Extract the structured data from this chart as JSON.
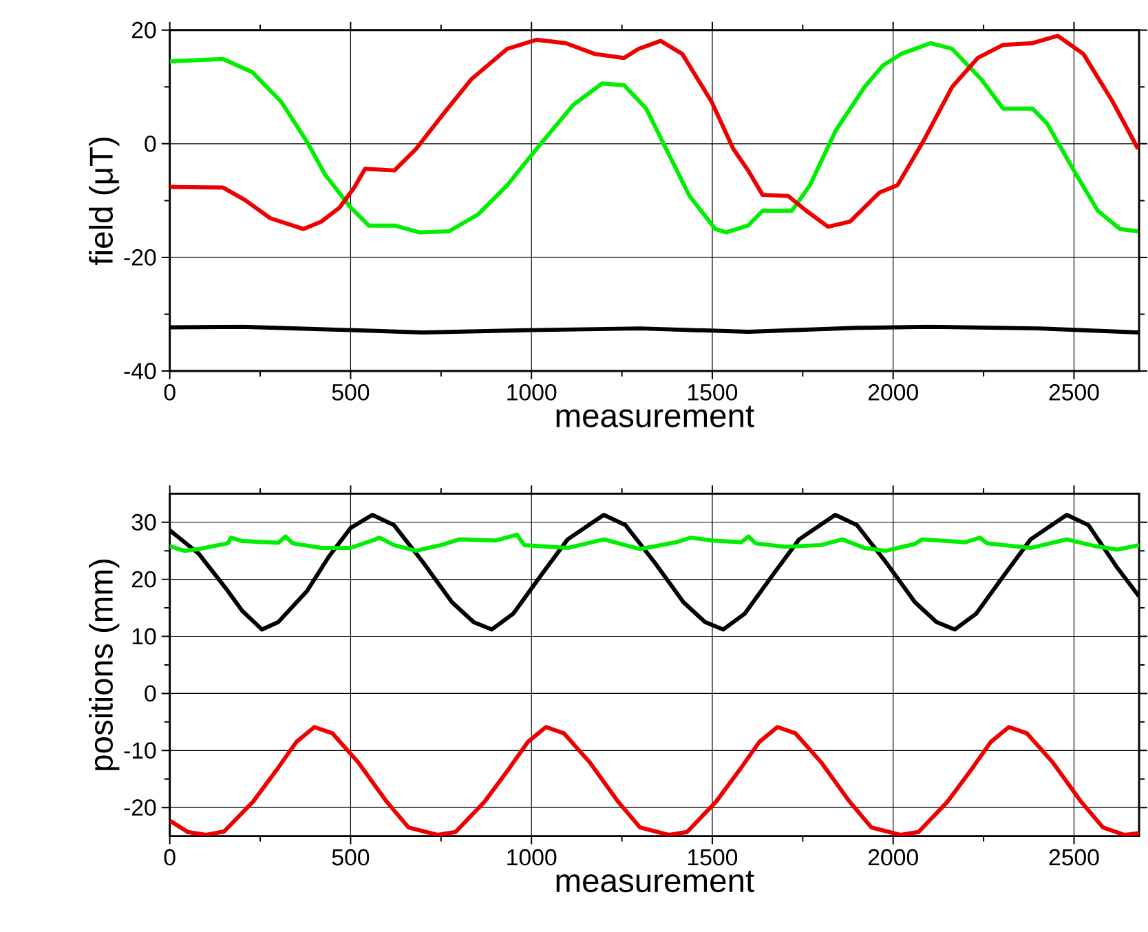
{
  "chart_data": [
    {
      "type": "line",
      "xlabel": "measurement",
      "ylabel": "field (μT)",
      "xlim": [
        0,
        2680
      ],
      "ylim": [
        -40,
        20
      ],
      "xticks": [
        0,
        500,
        1000,
        1500,
        2000,
        2500
      ],
      "yticks": [
        -40,
        -20,
        0,
        20
      ],
      "grid": true,
      "series": [
        {
          "color": "#00ee00",
          "x": [
            0,
            147,
            228,
            308,
            379,
            429,
            500,
            550,
            621,
            691,
            772,
            853,
            933,
            1014,
            1115,
            1195,
            1256,
            1317,
            1377,
            1437,
            1508,
            1538,
            1599,
            1639,
            1720,
            1770,
            1841,
            1921,
            1972,
            2022,
            2103,
            2163,
            2244,
            2304,
            2385,
            2425,
            2506,
            2566,
            2627,
            2677
          ],
          "values": [
            14.5,
            14.9,
            12.6,
            7.4,
            0.4,
            -5.4,
            -11.2,
            -14.4,
            -14.4,
            -15.6,
            -15.4,
            -12.4,
            -7.3,
            -0.9,
            6.8,
            10.6,
            10.3,
            6.2,
            -1.5,
            -9.2,
            -15,
            -15.6,
            -14.4,
            -11.8,
            -11.8,
            -7.3,
            2.3,
            10,
            13.8,
            15.8,
            17.7,
            16.7,
            11.3,
            6.2,
            6.2,
            3.6,
            -5.4,
            -11.8,
            -15,
            -15.4
          ]
        },
        {
          "color": "#ee0000",
          "x": [
            0,
            147,
            208,
            278,
            369,
            419,
            470,
            510,
            540,
            621,
            681,
            752,
            833,
            933,
            1014,
            1095,
            1175,
            1256,
            1296,
            1357,
            1417,
            1498,
            1558,
            1599,
            1639,
            1710,
            1760,
            1820,
            1881,
            1962,
            2012,
            2083,
            2163,
            2234,
            2304,
            2385,
            2455,
            2526,
            2607,
            2677
          ],
          "values": [
            -7.6,
            -7.7,
            -9.9,
            -13.1,
            -15,
            -13.7,
            -11.2,
            -7.7,
            -4.4,
            -4.7,
            -0.9,
            4.9,
            11.3,
            16.7,
            18.3,
            17.7,
            15.8,
            15.1,
            16.7,
            18.1,
            15.8,
            7.4,
            -0.9,
            -4.7,
            -9,
            -9.2,
            -11.8,
            -14.6,
            -13.7,
            -8.6,
            -7.3,
            0.4,
            10,
            15.1,
            17.4,
            17.7,
            19,
            15.8,
            7.4,
            -0.9
          ]
        },
        {
          "color": "#000000",
          "x": [
            0,
            200,
            400,
            700,
            1000,
            1300,
            1600,
            1900,
            2100,
            2400,
            2680
          ],
          "values": [
            -32.3,
            -32.2,
            -32.6,
            -33.2,
            -32.8,
            -32.5,
            -33.1,
            -32.4,
            -32.2,
            -32.5,
            -33.2
          ]
        }
      ]
    },
    {
      "type": "line",
      "xlabel": "measurement",
      "ylabel": "positions (mm)",
      "xlim": [
        0,
        2680
      ],
      "ylim": [
        -25,
        35
      ],
      "xticks": [
        0,
        500,
        1000,
        1500,
        2000,
        2500
      ],
      "yticks": [
        -20,
        -10,
        0,
        10,
        20,
        30
      ],
      "grid": true,
      "series": [
        {
          "color": "#000000",
          "x": [
            0,
            80,
            160,
            200,
            255,
            300,
            380,
            440,
            500,
            560,
            620,
            700,
            780,
            840,
            890,
            950,
            1030,
            1100,
            1200,
            1260,
            1340,
            1420,
            1480,
            1530,
            1590,
            1670,
            1740,
            1840,
            1900,
            1980,
            2060,
            2120,
            2170,
            2230,
            2310,
            2380,
            2480,
            2540,
            2620,
            2680
          ],
          "values": [
            28.6,
            24.5,
            18,
            14.5,
            11.2,
            12.5,
            18,
            24,
            29,
            31.3,
            29.5,
            23,
            16,
            12.5,
            11.2,
            14,
            21,
            27,
            31.3,
            29.5,
            23,
            16,
            12.5,
            11.2,
            14,
            21,
            27,
            31.3,
            29.5,
            23,
            16,
            12.5,
            11.2,
            14,
            21,
            27,
            31.3,
            29.5,
            22,
            17
          ]
        },
        {
          "color": "#00ee00",
          "x": [
            0,
            40,
            80,
            160,
            170,
            200,
            300,
            320,
            340,
            420,
            500,
            560,
            580,
            620,
            680,
            750,
            800,
            900,
            960,
            980,
            1100,
            1200,
            1300,
            1400,
            1440,
            1500,
            1580,
            1600,
            1620,
            1700,
            1800,
            1860,
            1920,
            1980,
            2060,
            2080,
            2200,
            2240,
            2260,
            2380,
            2480,
            2560,
            2620,
            2680
          ],
          "values": [
            25.8,
            25,
            25.3,
            26.3,
            27.3,
            26.7,
            26.4,
            27.5,
            26.3,
            25.5,
            25.5,
            26.8,
            27.3,
            26,
            25,
            26,
            27,
            26.8,
            27.8,
            26,
            25.5,
            27,
            25.3,
            26.5,
            27.3,
            26.8,
            26.5,
            27.5,
            26.3,
            25.7,
            26,
            27,
            25.5,
            25,
            26.2,
            27,
            26.5,
            27.3,
            26.3,
            25.5,
            27,
            25.8,
            25.2,
            26
          ]
        },
        {
          "color": "#ee0000",
          "x": [
            0,
            50,
            100,
            150,
            230,
            300,
            350,
            400,
            450,
            520,
            600,
            660,
            740,
            790,
            870,
            940,
            990,
            1040,
            1090,
            1160,
            1240,
            1300,
            1380,
            1430,
            1510,
            1580,
            1630,
            1680,
            1730,
            1800,
            1880,
            1940,
            2020,
            2070,
            2150,
            2220,
            2270,
            2320,
            2370,
            2440,
            2520,
            2580,
            2640,
            2680
          ],
          "values": [
            -22.3,
            -24.3,
            -24.8,
            -24.2,
            -19,
            -13,
            -8.5,
            -5.9,
            -7,
            -12,
            -19,
            -23.5,
            -24.8,
            -24.3,
            -19,
            -13,
            -8.5,
            -5.9,
            -7,
            -12,
            -19,
            -23.5,
            -24.8,
            -24.3,
            -19,
            -13,
            -8.5,
            -5.9,
            -7,
            -12,
            -19,
            -23.5,
            -24.8,
            -24.3,
            -19,
            -13,
            -8.5,
            -5.9,
            -7,
            -12,
            -19,
            -23.5,
            -24.8,
            -24.5
          ]
        }
      ]
    }
  ]
}
